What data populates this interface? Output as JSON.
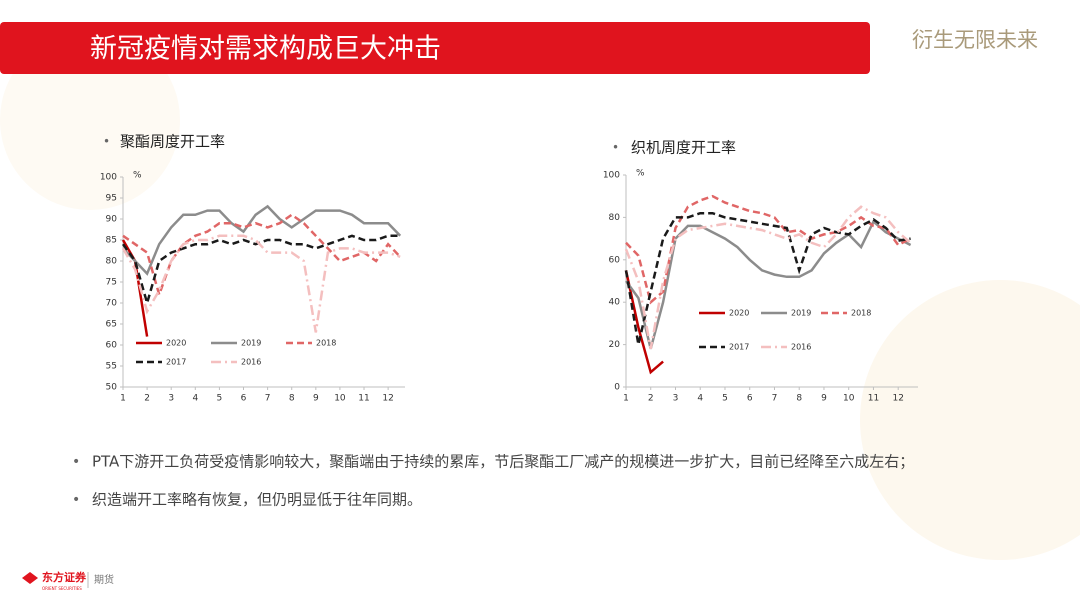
{
  "header": {
    "title": "新冠疫情对需求构成巨大冲击",
    "slogan": "衍生无限未来"
  },
  "chart_data": [
    {
      "type": "line",
      "title": "聚酯周度开工率",
      "y_unit": "%",
      "x": [
        1,
        1.5,
        2,
        2.5,
        3,
        3.5,
        4,
        4.5,
        5,
        5.5,
        6,
        6.5,
        7,
        7.5,
        8,
        8.5,
        9,
        9.5,
        10,
        10.5,
        11,
        11.5,
        12,
        12.5
      ],
      "xlim": [
        1,
        12.7
      ],
      "xticks": [
        1,
        2,
        3,
        4,
        5,
        6,
        7,
        8,
        9,
        10,
        11,
        12
      ],
      "ylim": [
        50,
        100
      ],
      "yticks": [
        50,
        55,
        60,
        65,
        70,
        75,
        80,
        85,
        90,
        95,
        100
      ],
      "legend": "bottom",
      "series": [
        {
          "name": "2020",
          "color": "#c00000",
          "dash": "solid",
          "values": [
            85,
            80,
            62,
            null,
            null,
            null,
            null,
            null,
            null,
            null,
            null,
            null,
            null,
            null,
            null,
            null,
            null,
            null,
            null,
            null,
            null,
            null,
            null,
            null
          ]
        },
        {
          "name": "2019",
          "color": "#8c8c8c",
          "dash": "solid",
          "values": [
            83,
            80,
            77,
            84,
            88,
            91,
            91,
            92,
            92,
            89,
            87,
            91,
            93,
            90,
            88,
            90,
            92,
            92,
            92,
            91,
            89,
            89,
            89,
            86
          ]
        },
        {
          "name": "2018",
          "color": "#e06666",
          "dash": "dash",
          "values": [
            86,
            84,
            82,
            72,
            80,
            84,
            86,
            87,
            89,
            89,
            88,
            89,
            88,
            89,
            91,
            89,
            86,
            83,
            80,
            81,
            82,
            80,
            84,
            81
          ]
        },
        {
          "name": "2017",
          "color": "#1a1a1a",
          "dash": "dash",
          "values": [
            84,
            80,
            70,
            80,
            82,
            83,
            84,
            84,
            85,
            84,
            85,
            84,
            85,
            85,
            84,
            84,
            83,
            84,
            85,
            86,
            85,
            85,
            86,
            86
          ]
        },
        {
          "name": "2016",
          "color": "#f4bfbf",
          "dash": "dashdot",
          "values": [
            83,
            78,
            68,
            73,
            80,
            84,
            85,
            85,
            86,
            86,
            86,
            85,
            82,
            82,
            82,
            80,
            63,
            82,
            83,
            83,
            82,
            82,
            82,
            81
          ]
        }
      ]
    },
    {
      "type": "line",
      "title": "织机周度开工率",
      "y_unit": "%",
      "x": [
        1,
        1.5,
        2,
        2.5,
        3,
        3.5,
        4,
        4.5,
        5,
        5.5,
        6,
        6.5,
        7,
        7.5,
        8,
        8.5,
        9,
        9.5,
        10,
        10.5,
        11,
        11.5,
        12,
        12.5
      ],
      "xlim": [
        1,
        12.8
      ],
      "xticks": [
        1,
        2,
        3,
        4,
        5,
        6,
        7,
        8,
        9,
        10,
        11,
        12
      ],
      "ylim": [
        0,
        100
      ],
      "yticks": [
        0,
        20,
        40,
        60,
        80,
        100
      ],
      "legend": "bottom",
      "series": [
        {
          "name": "2020",
          "color": "#c00000",
          "dash": "solid",
          "values": [
            55,
            28,
            7,
            12,
            null,
            null,
            null,
            null,
            null,
            null,
            null,
            null,
            null,
            null,
            null,
            null,
            null,
            null,
            null,
            null,
            null,
            null,
            null,
            null
          ]
        },
        {
          "name": "2019",
          "color": "#8c8c8c",
          "dash": "solid",
          "values": [
            50,
            42,
            18,
            40,
            70,
            76,
            76,
            73,
            70,
            66,
            60,
            55,
            53,
            52,
            52,
            55,
            63,
            68,
            72,
            66,
            78,
            73,
            70,
            67
          ]
        },
        {
          "name": "2018",
          "color": "#e06666",
          "dash": "dash",
          "values": [
            68,
            62,
            40,
            45,
            75,
            85,
            88,
            90,
            87,
            85,
            83,
            82,
            80,
            73,
            74,
            70,
            72,
            73,
            76,
            80,
            76,
            75,
            67,
            70
          ]
        },
        {
          "name": "2017",
          "color": "#1a1a1a",
          "dash": "dash",
          "values": [
            55,
            20,
            45,
            70,
            80,
            80,
            82,
            82,
            80,
            79,
            78,
            77,
            76,
            75,
            55,
            72,
            75,
            73,
            72,
            76,
            79,
            75,
            69,
            70
          ]
        },
        {
          "name": "2016",
          "color": "#f4bfbf",
          "dash": "dashdot",
          "values": [
            65,
            50,
            18,
            50,
            70,
            74,
            75,
            76,
            77,
            76,
            75,
            74,
            72,
            70,
            72,
            68,
            66,
            72,
            80,
            85,
            82,
            80,
            73,
            68
          ]
        }
      ]
    }
  ],
  "bullets": [
    "PTA下游开工负荷受疫情影响较大，聚酯端由于持续的累库，节后聚酯工厂减产的规模进一步扩大，目前已经降至六成左右；",
    "织造端开工率略有恢复，但仍明显低于往年同期。"
  ],
  "footer": {
    "brand": "东方证券",
    "brand_en": "ORIENT SECURITIES",
    "division": "期货"
  }
}
